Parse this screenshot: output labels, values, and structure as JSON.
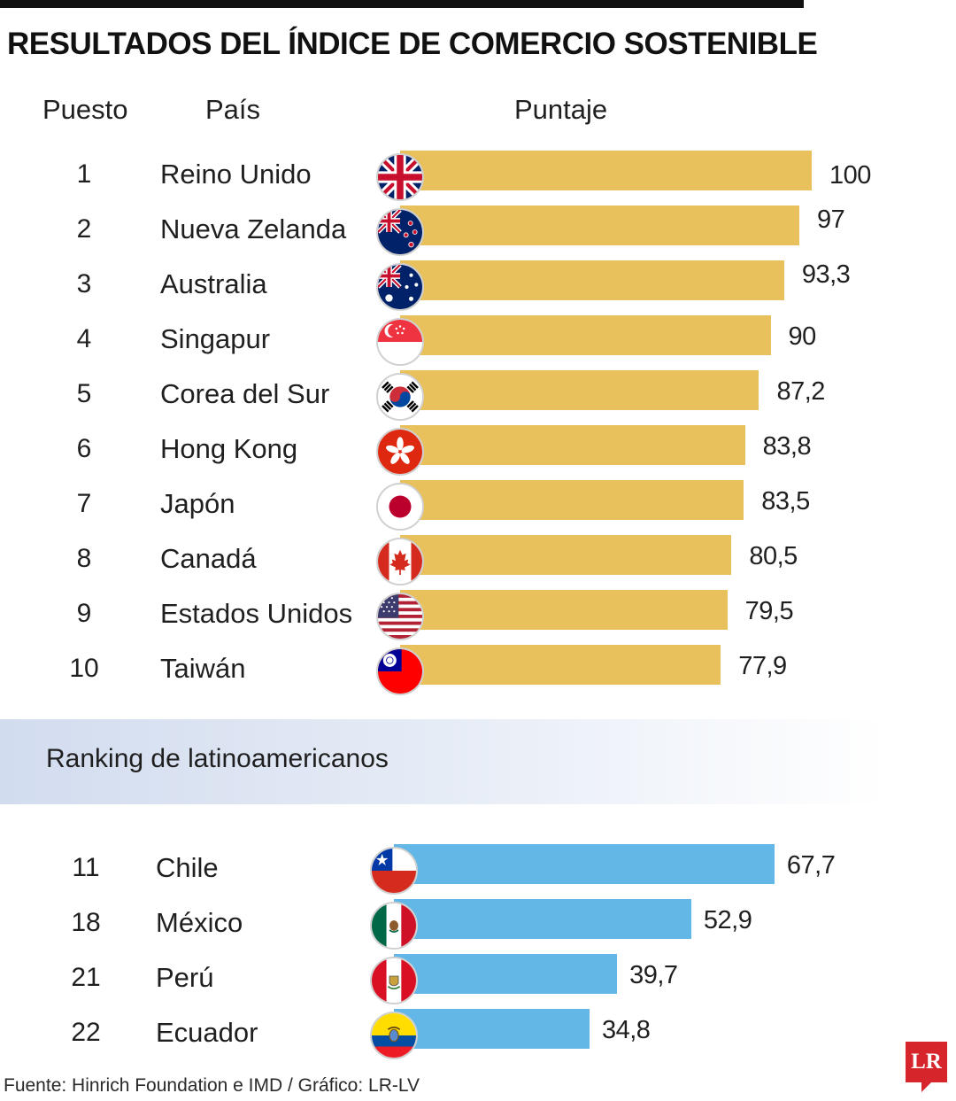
{
  "title": "RESULTADOS DEL ÍNDICE DE COMERCIO SOSTENIBLE",
  "headers": {
    "rank": "Puesto",
    "country": "País",
    "score": "Puntaje"
  },
  "section_label": "Ranking de latinoamericanos",
  "source": "Fuente: Hinrich Foundation e IMD / Gráfico: LR-LV",
  "logo_text": "LR",
  "colors": {
    "top10_bar": "#e8c05c",
    "latam_bar": "#63b7e6",
    "logo": "#d6262c"
  },
  "chart_data": [
    {
      "type": "bar",
      "orientation": "horizontal",
      "categories": [
        "Reino Unido",
        "Nueva Zelanda",
        "Australia",
        "Singapur",
        "Corea del Sur",
        "Hong Kong",
        "Japón",
        "Canadá",
        "Estados Unidos",
        "Taiwán"
      ],
      "ranks": [
        "1",
        "2",
        "3",
        "4",
        "5",
        "6",
        "7",
        "8",
        "9",
        "10"
      ],
      "values": [
        100,
        97,
        93.3,
        90,
        87.2,
        83.8,
        83.5,
        80.5,
        79.5,
        77.9
      ],
      "value_labels": [
        "100",
        "97",
        "93,3",
        "90",
        "87,2",
        "83,8",
        "83,5",
        "80,5",
        "79,5",
        "77,9"
      ],
      "flags": [
        "uk-flag-icon",
        "new-zealand-flag-icon",
        "australia-flag-icon",
        "singapore-flag-icon",
        "south-korea-flag-icon",
        "hong-kong-flag-icon",
        "japan-flag-icon",
        "canada-flag-icon",
        "usa-flag-icon",
        "taiwan-flag-icon"
      ],
      "xlim": [
        0,
        100
      ],
      "grid": false
    },
    {
      "type": "bar",
      "orientation": "horizontal",
      "categories": [
        "Chile",
        "México",
        "Perú",
        "Ecuador"
      ],
      "ranks": [
        "11",
        "18",
        "21",
        "22"
      ],
      "values": [
        67.7,
        52.9,
        39.7,
        34.8
      ],
      "value_labels": [
        "67,7",
        "52,9",
        "39,7",
        "34,8"
      ],
      "flags": [
        "chile-flag-icon",
        "mexico-flag-icon",
        "peru-flag-icon",
        "ecuador-flag-icon"
      ],
      "xlim": [
        0,
        100
      ],
      "grid": false
    }
  ]
}
